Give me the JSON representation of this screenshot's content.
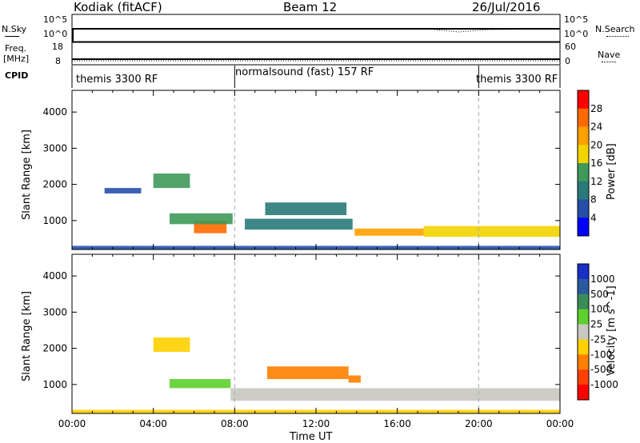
{
  "header": {
    "title": "Kodiak (fitACF)",
    "beam": "Beam 12",
    "date": "26/Jul/2016"
  },
  "top_panels": {
    "nsky_label": "N.Sky",
    "nsky_ticks": [
      "10^5",
      "10^0"
    ],
    "nsearch_label": "N.Search",
    "nsearch_ticks": [
      "10^5",
      "10^0"
    ],
    "freq_label": "Freq.",
    "freq_unit": "[MHz]",
    "freq_ticks": [
      "18",
      "8"
    ],
    "nave_label": "Nave",
    "nave_ticks": [
      "60",
      "0"
    ],
    "cpid_label": "CPID",
    "cpid_segments": [
      "themis 3300 RF",
      "normalsound (fast) 157 RF",
      "themis 3300 RF"
    ]
  },
  "chart_data": [
    {
      "type": "heatmap",
      "title": "",
      "xlabel": "",
      "ylabel": "Slant Range [km]",
      "x": [
        "00:00",
        "04:00",
        "08:00",
        "12:00",
        "16:00",
        "20:00",
        "00:00"
      ],
      "y_ticks": [
        "4000",
        "3000",
        "2000",
        "1000"
      ],
      "ylim": [
        200,
        4600
      ],
      "colorbar": {
        "label": "Power [dB]",
        "ticks": [
          "28",
          "24",
          "20",
          "16",
          "12",
          "8",
          "4"
        ],
        "colors": [
          "#ff0000",
          "#ff6a00",
          "#ffa000",
          "#f2d400",
          "#3f9a5a",
          "#2a7a7a",
          "#244fa8",
          "#0000ff"
        ]
      },
      "regions": [
        {
          "t0": 6.0,
          "t1": 7.6,
          "r0": 650,
          "r1": 1000,
          "value": 26
        },
        {
          "t0": 4.8,
          "t1": 7.9,
          "r0": 900,
          "r1": 1200,
          "value": 14
        },
        {
          "t0": 9.5,
          "t1": 13.5,
          "r0": 1150,
          "r1": 1500,
          "value": 12
        },
        {
          "t0": 8.5,
          "t1": 13.8,
          "r0": 750,
          "r1": 1050,
          "value": 10
        },
        {
          "t0": 13.9,
          "t1": 17.3,
          "r0": 580,
          "r1": 780,
          "value": 24
        },
        {
          "t0": 17.3,
          "t1": 24.0,
          "r0": 550,
          "r1": 850,
          "value": 18
        },
        {
          "t0": 1.6,
          "t1": 3.4,
          "r0": 1750,
          "r1": 1900,
          "value": 6
        },
        {
          "t0": 4.0,
          "t1": 5.8,
          "r0": 1900,
          "r1": 2300,
          "value": 14
        },
        {
          "t0": 0.0,
          "t1": 24.0,
          "r0": 200,
          "r1": 300,
          "value": 6
        }
      ]
    },
    {
      "type": "heatmap",
      "title": "",
      "xlabel": "Time UT",
      "ylabel": "Slant Range [km]",
      "x": [
        "00:00",
        "04:00",
        "08:00",
        "12:00",
        "16:00",
        "20:00",
        "00:00"
      ],
      "y_ticks": [
        "4000",
        "3000",
        "2000",
        "1000"
      ],
      "ylim": [
        200,
        4600
      ],
      "colorbar": {
        "label": "Velocity [m s^-1]",
        "ticks": [
          "1000",
          "500",
          "100",
          "25",
          "-25",
          "-100",
          "-500",
          "-1000"
        ],
        "colors": [
          "#1830c8",
          "#2a5aa0",
          "#3a8c5a",
          "#5cd02c",
          "#c8c8c0",
          "#ffd000",
          "#ff8000",
          "#ff4000",
          "#ff0000"
        ]
      },
      "regions": [
        {
          "t0": 4.8,
          "t1": 7.8,
          "r0": 900,
          "r1": 1150,
          "value": 80
        },
        {
          "t0": 7.8,
          "t1": 24.0,
          "r0": 550,
          "r1": 900,
          "value": 0
        },
        {
          "t0": 9.6,
          "t1": 13.6,
          "r0": 1150,
          "r1": 1500,
          "value": -200
        },
        {
          "t0": 13.6,
          "t1": 14.2,
          "r0": 1050,
          "r1": 1250,
          "value": -300
        },
        {
          "t0": 4.0,
          "t1": 5.8,
          "r0": 1900,
          "r1": 2300,
          "value": -60
        },
        {
          "t0": 0.0,
          "t1": 24.0,
          "r0": 200,
          "r1": 300,
          "value": -60
        }
      ]
    }
  ]
}
